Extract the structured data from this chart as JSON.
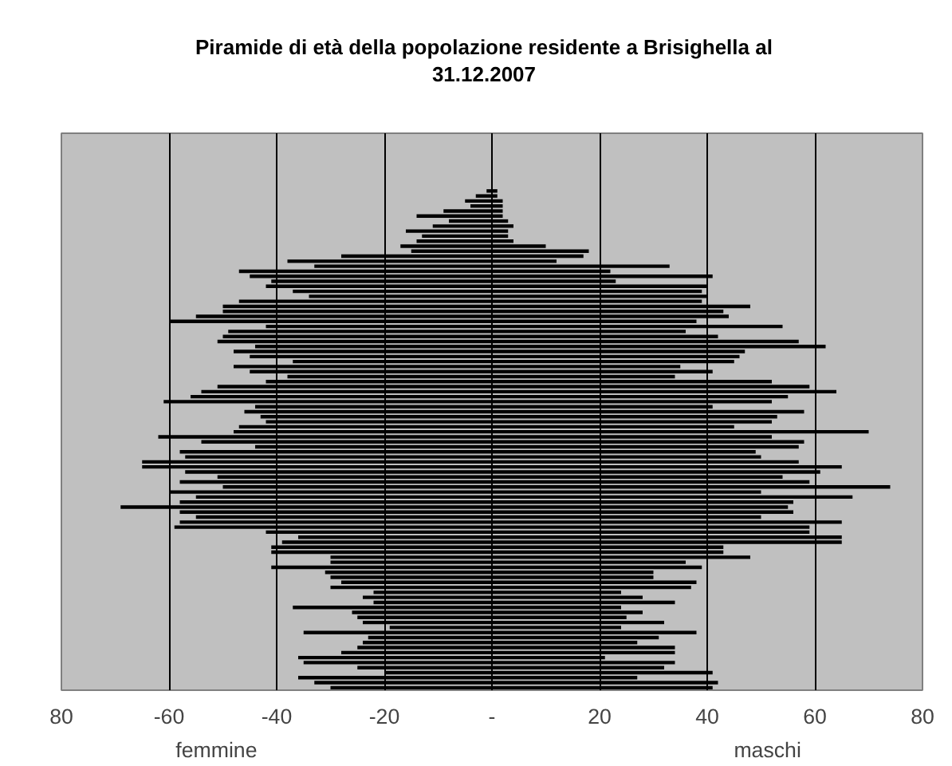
{
  "chart_data": {
    "type": "bar",
    "orientation": "horizontal",
    "title": "Piramide di età della popolazione residente a Brisighella al\n31.12.2007",
    "categories": [
      null,
      null,
      null,
      null,
      null,
      null,
      null,
      null,
      null,
      null,
      null,
      null,
      null,
      null,
      null,
      null,
      null,
      null,
      null,
      null,
      null,
      null,
      null,
      null,
      null,
      null,
      null,
      null,
      null,
      null,
      null,
      null,
      null,
      null,
      null,
      null,
      null,
      null,
      null,
      null,
      null,
      null,
      null,
      null,
      null,
      null,
      null,
      null,
      null,
      null,
      null,
      null,
      null,
      null,
      null,
      null,
      null,
      null,
      null,
      null,
      null,
      null,
      null,
      null,
      null,
      null,
      null,
      null,
      null,
      null,
      null,
      null,
      null,
      null,
      null,
      null,
      null,
      null,
      null,
      null,
      null,
      null,
      null,
      null,
      null,
      null,
      null,
      null,
      null,
      null,
      null,
      null,
      null,
      null,
      null,
      null,
      null,
      null,
      null,
      null
    ],
    "series": [
      {
        "color": "#000000",
        "values": [
          -1,
          -3,
          -5,
          -4,
          -9,
          -14,
          -8,
          -11,
          -16,
          -13,
          -14,
          -17,
          -15,
          -28,
          -38,
          -33,
          -47,
          -45,
          -41,
          -42,
          -37,
          -34,
          -47,
          -50,
          -50,
          -55,
          -60,
          -42,
          -49,
          -50,
          -51,
          -44,
          -48,
          -45,
          -37,
          -48,
          -45,
          -38,
          -42,
          -51,
          -54,
          -56,
          -61,
          -44,
          -46,
          -43,
          -42,
          -47,
          -48,
          -62,
          -54,
          -44,
          -58,
          -57,
          -65,
          -65,
          -57,
          -51,
          -58,
          -50,
          -60,
          -55,
          -58,
          -69,
          -58,
          -55,
          -58,
          -59,
          -42,
          -36,
          -39,
          -41,
          -41,
          -30,
          -30,
          -41,
          -31,
          -30,
          -28,
          -30,
          -22,
          -24,
          -22,
          -37,
          -26,
          -25,
          -24,
          -19,
          -35,
          -23,
          -24,
          -25,
          -28,
          -36,
          -35,
          -25,
          -20,
          -36,
          -33,
          -30
        ]
      },
      {
        "color": "#000000",
        "values": [
          1,
          1,
          2,
          2,
          2,
          2,
          3,
          4,
          3,
          3,
          4,
          10,
          18,
          17,
          12,
          33,
          22,
          41,
          23,
          40,
          39,
          40,
          39,
          48,
          43,
          44,
          38,
          54,
          36,
          42,
          57,
          62,
          47,
          46,
          45,
          35,
          41,
          34,
          52,
          59,
          64,
          55,
          52,
          41,
          58,
          53,
          52,
          45,
          70,
          52,
          58,
          57,
          49,
          50,
          57,
          65,
          61,
          54,
          59,
          74,
          50,
          67,
          56,
          55,
          56,
          50,
          65,
          59,
          59,
          65,
          65,
          43,
          43,
          48,
          36,
          39,
          30,
          30,
          38,
          37,
          24,
          28,
          34,
          24,
          28,
          25,
          32,
          24,
          38,
          31,
          27,
          34,
          34,
          21,
          34,
          32,
          41,
          27,
          42,
          41
        ]
      }
    ],
    "xlim": [
      -80,
      80
    ],
    "xticks": [
      {
        "value": -80,
        "label": "80"
      },
      -60,
      -40,
      -20,
      {
        "value": 0,
        "label": "-"
      },
      20,
      40,
      60,
      80
    ],
    "grid": "x",
    "tick_labels": "x",
    "stacked": true,
    "annotations": [
      "femmine",
      "maschi"
    ]
  }
}
